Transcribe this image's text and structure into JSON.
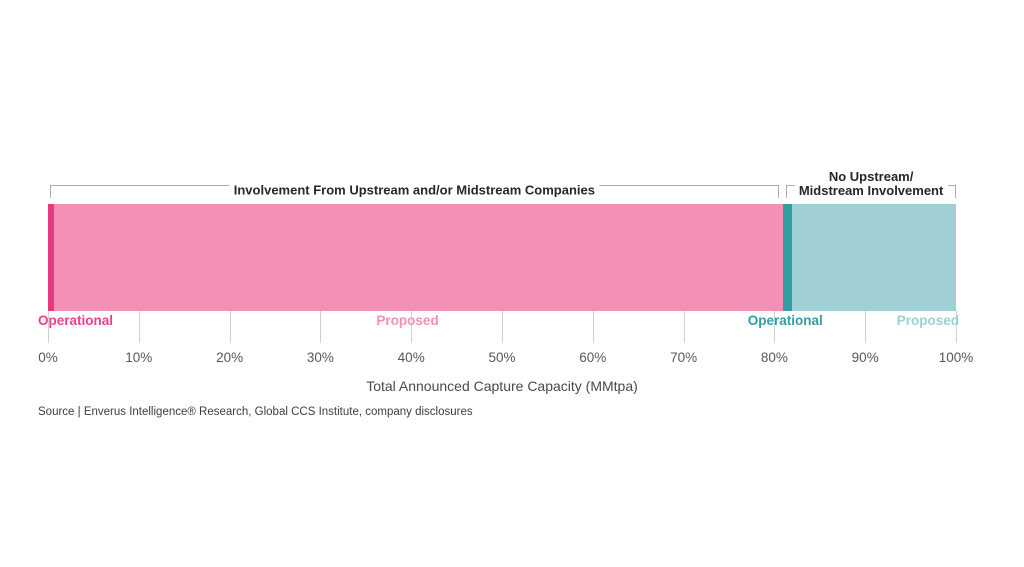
{
  "chart_data": {
    "type": "bar",
    "variant": "horizontal-stacked-100pct",
    "title": "",
    "xlabel": "Total Announced Capture Capacity (MMtpa)",
    "ylabel": "",
    "x_range": [
      0,
      100
    ],
    "grid": false,
    "segments": [
      {
        "group": "Involvement From Upstream and/or Midstream Companies",
        "status": "Operational",
        "start_pct": 0,
        "end_pct": 0.7,
        "color": "#e73882"
      },
      {
        "group": "Involvement From Upstream and/or Midstream Companies",
        "status": "Proposed",
        "start_pct": 0.7,
        "end_pct": 81.0,
        "color": "#f48fb5"
      },
      {
        "group": "No Upstream/Midstream Involvement",
        "status": "Operational",
        "start_pct": 81.0,
        "end_pct": 81.9,
        "color": "#2f9fa4"
      },
      {
        "group": "No Upstream/Midstream Involvement",
        "status": "Proposed",
        "start_pct": 81.9,
        "end_pct": 100,
        "color": "#a0d0d4"
      }
    ],
    "brackets": [
      {
        "lines": [
          "Involvement From Upstream and/or Midstream Companies"
        ],
        "start_pct": 0.2,
        "end_pct": 80.5
      },
      {
        "lines": [
          "No Upstream/",
          "Midstream Involvement"
        ],
        "start_pct": 81.3,
        "end_pct": 100
      }
    ],
    "series_labels": [
      {
        "text": "Operational",
        "pct": 0,
        "align": "left",
        "color": "#f03e8c"
      },
      {
        "text": "Proposed",
        "pct": 39.6,
        "align": "center",
        "color": "#f48fb5"
      },
      {
        "text": "Operational",
        "pct": 81.2,
        "align": "center",
        "color": "#2f9fa4"
      },
      {
        "text": "Proposed",
        "pct": 100,
        "align": "right",
        "color": "#9ccfd4"
      }
    ],
    "x_ticks": [
      {
        "label": "0%",
        "pct": 0
      },
      {
        "label": "10%",
        "pct": 10
      },
      {
        "label": "20%",
        "pct": 20
      },
      {
        "label": "30%",
        "pct": 30
      },
      {
        "label": "40%",
        "pct": 40
      },
      {
        "label": "50%",
        "pct": 50
      },
      {
        "label": "60%",
        "pct": 60
      },
      {
        "label": "70%",
        "pct": 70
      },
      {
        "label": "80%",
        "pct": 80
      },
      {
        "label": "90%",
        "pct": 90
      },
      {
        "label": "100%",
        "pct": 100
      }
    ]
  },
  "source": "Source | Enverus Intelligence® Research, Global CCS Institute, company disclosures",
  "colors": {
    "pink_operational": "#e73882",
    "pink_proposed": "#f48fb5",
    "teal_operational": "#2f9fa4",
    "teal_proposed": "#a0d0d4",
    "bracket_line": "#ababab",
    "tick_line": "#d2d2d2"
  }
}
